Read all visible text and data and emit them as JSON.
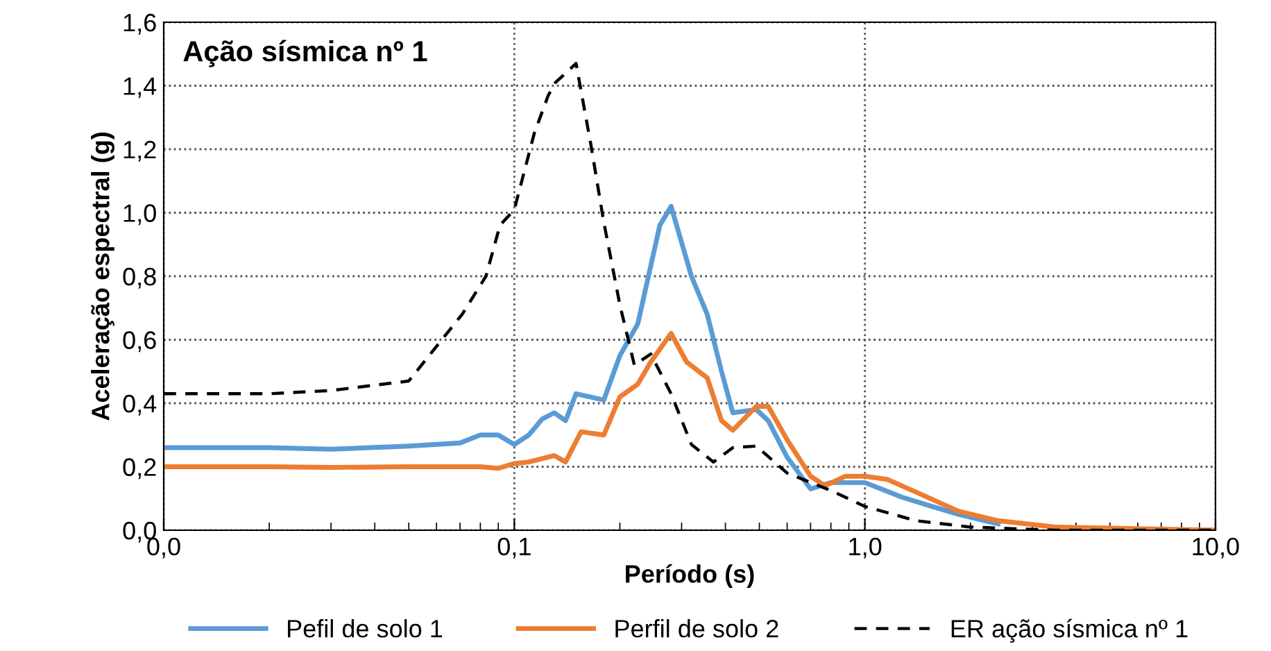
{
  "chart_data": {
    "type": "line",
    "title": "Ação sísmica nº 1",
    "xlabel": "Período (s)",
    "ylabel": "Aceleração espectral (g)",
    "log": "x",
    "xlim": [
      0.01,
      10
    ],
    "xticks": [
      {
        "value": 0.01,
        "label": "0,0"
      },
      {
        "value": 0.1,
        "label": "0,1"
      },
      {
        "value": 1,
        "label": "1,0"
      },
      {
        "value": 10,
        "label": "10,0"
      }
    ],
    "ylim": [
      0,
      1.6
    ],
    "yticks": [
      {
        "value": 0,
        "label": "0,0"
      },
      {
        "value": 0.2,
        "label": "0,2"
      },
      {
        "value": 0.4,
        "label": "0,4"
      },
      {
        "value": 0.6,
        "label": "0,6"
      },
      {
        "value": 0.8,
        "label": "0,8"
      },
      {
        "value": 1.0,
        "label": "1,0"
      },
      {
        "value": 1.2,
        "label": "1,2"
      },
      {
        "value": 1.4,
        "label": "1,4"
      },
      {
        "value": 1.6,
        "label": "1,6"
      }
    ],
    "grid": true,
    "legend": "bottom",
    "marker": "none",
    "series": [
      {
        "name": "Pefil de solo 1",
        "color": "#5b9bd5",
        "line_style": "solid",
        "x": [
          0.01,
          0.02,
          0.03,
          0.05,
          0.07,
          0.08,
          0.09,
          0.1,
          0.11,
          0.12,
          0.13,
          0.14,
          0.15,
          0.18,
          0.2,
          0.225,
          0.26,
          0.28,
          0.32,
          0.355,
          0.39,
          0.42,
          0.49,
          0.53,
          0.6,
          0.7,
          0.8,
          1.0,
          1.27,
          1.5,
          1.85,
          2.4,
          3.5,
          5.0,
          10
        ],
        "values": [
          0.26,
          0.26,
          0.255,
          0.265,
          0.275,
          0.3,
          0.3,
          0.27,
          0.3,
          0.35,
          0.37,
          0.345,
          0.43,
          0.41,
          0.55,
          0.65,
          0.96,
          1.02,
          0.8,
          0.68,
          0.5,
          0.37,
          0.38,
          0.345,
          0.23,
          0.13,
          0.15,
          0.15,
          0.105,
          0.08,
          0.05,
          0.02,
          null,
          0.0,
          0.0
        ]
      },
      {
        "name": "Perfil de solo 2",
        "color": "#ed7d31",
        "line_style": "solid",
        "x": [
          0.01,
          0.02,
          0.03,
          0.05,
          0.08,
          0.09,
          0.1,
          0.11,
          0.13,
          0.14,
          0.155,
          0.18,
          0.2,
          0.225,
          0.245,
          0.28,
          0.31,
          0.355,
          0.39,
          0.42,
          0.49,
          0.53,
          0.6,
          0.7,
          0.77,
          0.88,
          1.0,
          1.16,
          1.4,
          1.85,
          2.4,
          3.5,
          10
        ],
        "values": [
          0.2,
          0.2,
          0.198,
          0.2,
          0.2,
          0.195,
          0.21,
          0.215,
          0.235,
          0.215,
          0.31,
          0.3,
          0.42,
          0.46,
          0.53,
          0.62,
          0.53,
          0.48,
          0.345,
          0.315,
          0.39,
          0.39,
          0.285,
          0.17,
          0.14,
          0.17,
          0.17,
          0.16,
          0.12,
          0.06,
          0.03,
          0.01,
          0.0
        ]
      },
      {
        "name": "ER ação sísmica nº 1",
        "color": "#000000",
        "line_style": "dashed",
        "x": [
          0.01,
          0.02,
          0.03,
          0.05,
          0.071,
          0.083,
          0.091,
          0.1,
          0.114,
          0.125,
          0.131,
          0.15,
          0.165,
          0.18,
          0.2,
          0.22,
          0.245,
          0.28,
          0.32,
          0.37,
          0.42,
          0.49,
          0.6,
          0.8,
          1.0,
          1.4,
          2.0,
          3.5,
          10
        ],
        "values": [
          0.43,
          0.43,
          0.44,
          0.47,
          0.68,
          0.8,
          0.96,
          1.01,
          1.25,
          1.37,
          1.41,
          1.47,
          1.22,
          0.97,
          0.71,
          0.52,
          0.555,
          0.43,
          0.27,
          0.215,
          0.26,
          0.265,
          0.18,
          0.125,
          0.075,
          0.03,
          0.01,
          0.0,
          0.0
        ]
      }
    ]
  }
}
